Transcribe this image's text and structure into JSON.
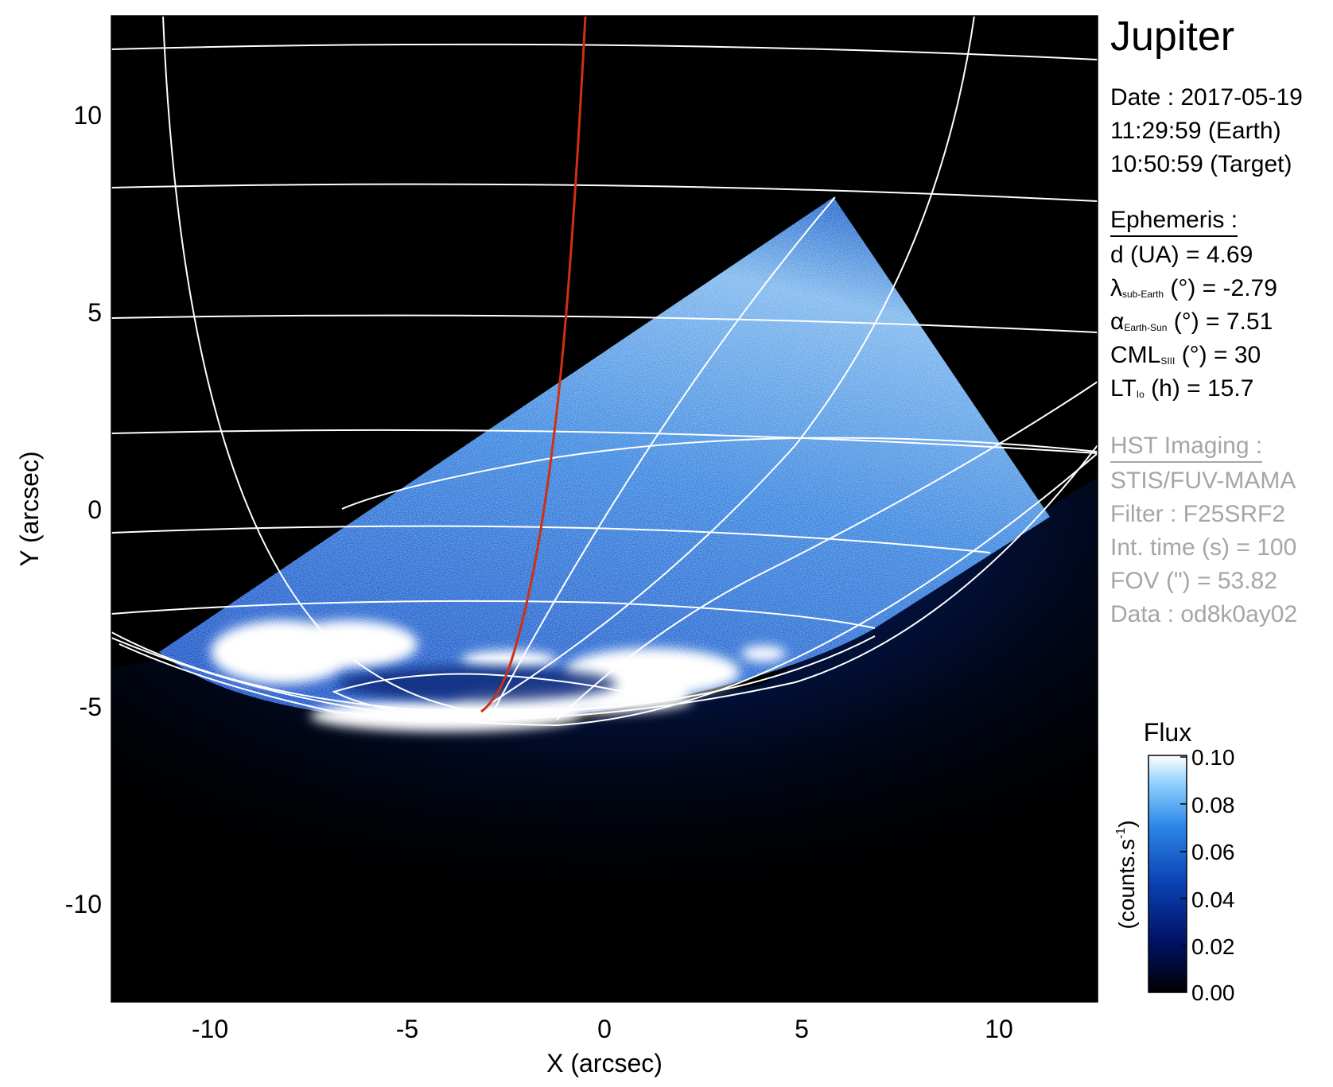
{
  "chart_data": {
    "type": "heatmap",
    "title": "Jupiter",
    "xlabel": "X (arcsec)",
    "ylabel": "Y (arcsec)",
    "xlim": [
      -12.5,
      12.5
    ],
    "ylim": [
      -12.5,
      12.5
    ],
    "x_ticks": [
      "-10",
      "-5",
      "0",
      "5",
      "10"
    ],
    "y_ticks": [
      "10",
      "5",
      "0",
      "-5",
      "-10"
    ],
    "colorbar": {
      "title": "Flux",
      "label": "(counts.s",
      "label_sup": "-1",
      "label_close": ")",
      "range": [
        0.0,
        0.1
      ],
      "ticks": [
        "0.10",
        "0.08",
        "0.06",
        "0.04",
        "0.02",
        "0.00"
      ]
    },
    "colormap": [
      "#000000",
      "#001060",
      "#0a3fb0",
      "#2a86e6",
      "#8fd0ff",
      "#ffffff"
    ],
    "grid_color": "#ffffff",
    "meridian_color": "#d03010"
  },
  "info": {
    "date": "Date : 2017-05-19",
    "time_earth": "11:29:59 (Earth)",
    "time_target": "10:50:59 (Target)",
    "ephemeris_header": "Ephemeris :",
    "d": "d (UA)    = 4.69",
    "lambda_sym": "λ",
    "lambda_sub": "sub-Earth",
    "lambda_val": " (°) = -2.79",
    "alpha_sym": "α",
    "alpha_sub": "Earth-Sun",
    "alpha_val": " (°) = 7.51",
    "cml_sym": "CML",
    "cml_sub": "SIII",
    "cml_val": " (°) = 30",
    "lt_sym": "LT",
    "lt_sub": "Io",
    "lt_val": " (h) = 15.7",
    "hst_header": "HST Imaging :",
    "instrument": "STIS/FUV-MAMA",
    "filter": "Filter : F25SRF2",
    "int_time": "Int. time (s) = 100",
    "fov": "FOV (\") = 53.82",
    "data": "Data : od8k0ay02"
  }
}
